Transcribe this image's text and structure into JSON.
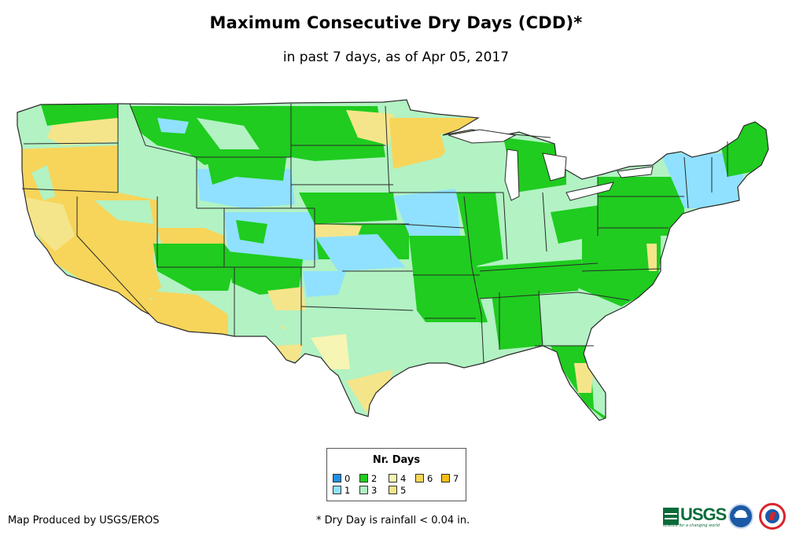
{
  "title": "Maximum Consecutive Dry Days (CDD)*",
  "subtitle": "in past 7 days, as of Apr 05, 2017",
  "legend": {
    "title": "Nr. Days",
    "items": [
      {
        "label": "0",
        "color": "#1e90e6"
      },
      {
        "label": "1",
        "color": "#8fe1ff"
      },
      {
        "label": "2",
        "color": "#1fcc1f"
      },
      {
        "label": "3",
        "color": "#b2f2c3"
      },
      {
        "label": "4",
        "color": "#f7f5b3"
      },
      {
        "label": "5",
        "color": "#f5e58a"
      },
      {
        "label": "6",
        "color": "#f7d55a"
      },
      {
        "label": "7",
        "color": "#f4be16"
      }
    ]
  },
  "footer": {
    "produced_by": "Map Produced by USGS/EROS",
    "note": "* Dry Day is rainfall < 0.04 in."
  },
  "logos": {
    "usgs_word": "USGS",
    "usgs_tagline": "science for a changing world",
    "noaa_text": "NOAA"
  },
  "colors": {
    "state_border": "#2a2a2a",
    "ocean": "#ffffff"
  }
}
